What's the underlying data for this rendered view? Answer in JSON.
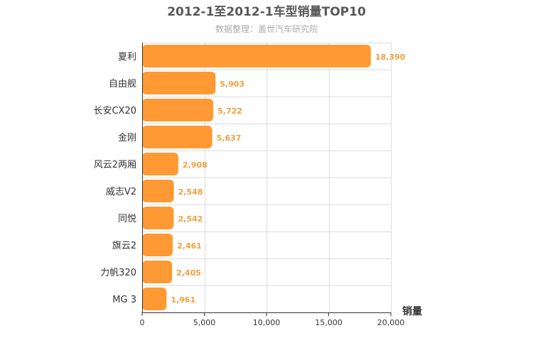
{
  "chart_data": {
    "type": "bar",
    "orientation": "horizontal",
    "title": "2012-1至2012-1车型销量TOP10",
    "subtitle": "数据整理：盖世汽车研究院",
    "xlabel": "销量",
    "ylabel": "",
    "categories": [
      "夏利",
      "自由舰",
      "长安CX20",
      "金刚",
      "风云2两厢",
      "威志V2",
      "同悦",
      "旗云2",
      "力帆320",
      "MG 3"
    ],
    "values": [
      18390,
      5903,
      5722,
      5637,
      2908,
      2548,
      2542,
      2461,
      2405,
      1961
    ],
    "value_labels": [
      "18,390",
      "5,903",
      "5,722",
      "5,637",
      "2,908",
      "2,548",
      "2,542",
      "2,461",
      "2,405",
      "1,961"
    ],
    "xlim": [
      0,
      20000
    ],
    "xticks": [
      0,
      5000,
      10000,
      15000,
      20000
    ],
    "xtick_labels": [
      "0",
      "5,000",
      "10,000",
      "15,000",
      "20,000"
    ],
    "bar_color": "#ff9933",
    "label_color": "#f0a040",
    "grid": true
  }
}
